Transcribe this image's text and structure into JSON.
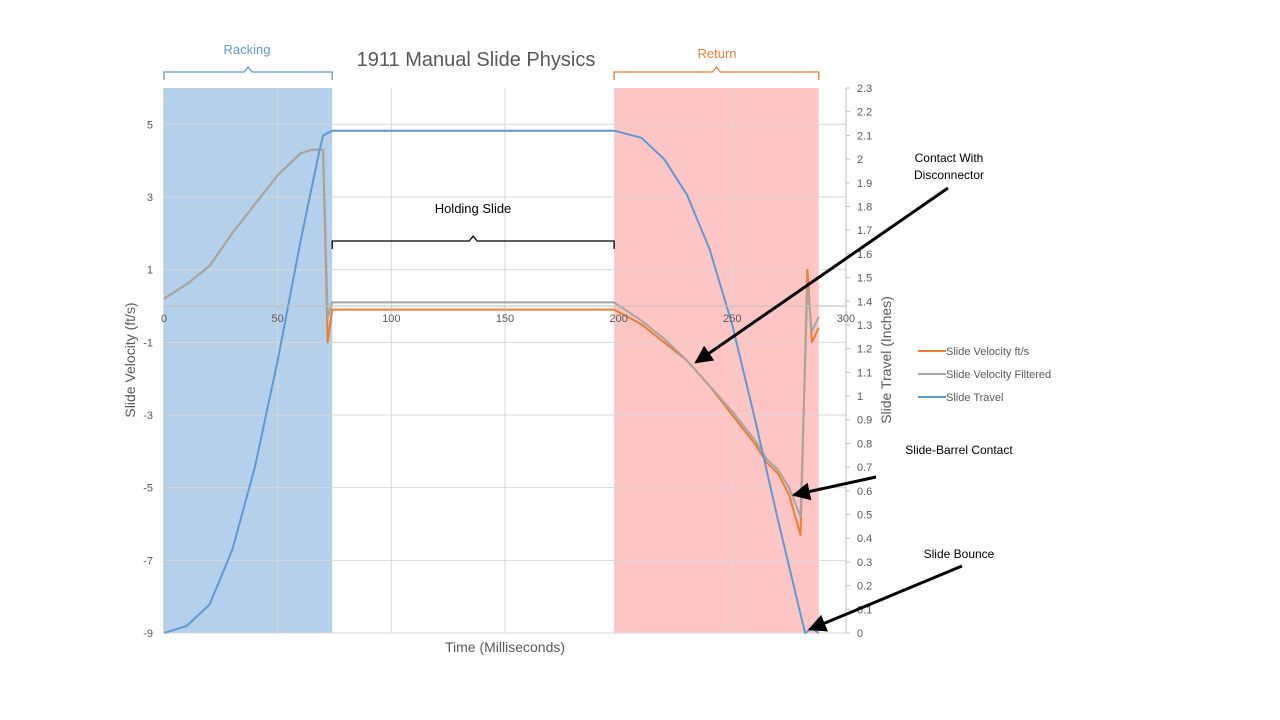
{
  "chart_data": {
    "type": "line",
    "title": "1911 Manual Slide Physics",
    "xlabel": "Time (Milliseconds)",
    "ylabel": "Slide Velocity (ft/s)",
    "y2label": "Slide Travel (Inches)",
    "xlim": [
      0,
      300
    ],
    "ylim": [
      -9,
      6
    ],
    "y2lim": [
      0,
      2.3
    ],
    "x_ticks": [
      0,
      50,
      100,
      150,
      200,
      250,
      300
    ],
    "y_ticks": [
      -9,
      -7,
      -5,
      -3,
      -1,
      1,
      3,
      5
    ],
    "y2_ticks": [
      0,
      0.1,
      0.2,
      0.3,
      0.4,
      0.5,
      0.6,
      0.7,
      0.8,
      0.9,
      1,
      1.1,
      1.2,
      1.3,
      1.4,
      1.5,
      1.6,
      1.7,
      1.8,
      1.9,
      2,
      2.1,
      2.2,
      2.3
    ],
    "grid": true,
    "legend_position": "right",
    "regions": [
      {
        "label": "Racking",
        "x_start": 0,
        "x_end": 74,
        "color": "#b4d0ea"
      },
      {
        "label": "Return",
        "x_start": 198,
        "x_end": 288,
        "color": "#ffc4c4"
      }
    ],
    "brace_label": "Holding Slide",
    "series": [
      {
        "name": "Slide Velocity ft/s",
        "axis": "left",
        "color": "#ed7d31",
        "x": [
          0,
          10,
          20,
          30,
          40,
          50,
          60,
          65,
          70,
          72,
          74,
          100,
          150,
          198,
          210,
          220,
          230,
          240,
          250,
          260,
          265,
          270,
          275,
          280,
          283,
          285,
          288
        ],
        "y": [
          0.2,
          0.6,
          1.1,
          2.0,
          2.8,
          3.6,
          4.2,
          4.3,
          4.3,
          -1.0,
          -0.1,
          -0.1,
          -0.1,
          -0.1,
          -0.5,
          -1.0,
          -1.5,
          -2.2,
          -3.0,
          -3.8,
          -4.3,
          -4.6,
          -5.2,
          -6.3,
          1.0,
          -1.0,
          -0.6
        ]
      },
      {
        "name": "Slide Velocity Filtered",
        "axis": "left",
        "color": "#a5a5a5",
        "x": [
          0,
          10,
          20,
          30,
          40,
          50,
          60,
          65,
          70,
          72,
          74,
          100,
          150,
          198,
          210,
          220,
          230,
          240,
          250,
          260,
          265,
          270,
          275,
          280,
          283,
          285,
          288
        ],
        "y": [
          0.2,
          0.6,
          1.1,
          2.0,
          2.8,
          3.6,
          4.2,
          4.3,
          4.3,
          -0.3,
          0.1,
          0.1,
          0.1,
          0.1,
          -0.4,
          -0.9,
          -1.5,
          -2.2,
          -2.9,
          -3.7,
          -4.2,
          -4.5,
          -5.0,
          -5.8,
          0.5,
          -0.7,
          -0.3
        ]
      },
      {
        "name": "Slide Travel",
        "axis": "right",
        "color": "#5b9bd5",
        "x": [
          0,
          10,
          20,
          30,
          40,
          50,
          60,
          68,
          70,
          74,
          150,
          198,
          210,
          220,
          230,
          240,
          250,
          260,
          270,
          280,
          282,
          285,
          288
        ],
        "y": [
          0.0,
          0.03,
          0.12,
          0.35,
          0.7,
          1.15,
          1.65,
          2.02,
          2.1,
          2.12,
          2.12,
          2.12,
          2.09,
          2.0,
          1.85,
          1.62,
          1.3,
          0.9,
          0.48,
          0.08,
          0.0,
          0.02,
          0.0
        ]
      }
    ],
    "annotations": [
      {
        "text_lines": [
          "Contact With",
          "Disconnector"
        ],
        "target_x": 234,
        "target_y": -1.55
      },
      {
        "text_lines": [
          "Slide-Barrel Contact"
        ],
        "target_x": 277,
        "target_y": -5.2
      },
      {
        "text_lines": [
          "Slide Bounce"
        ],
        "target_x": 284,
        "target_y": -8.9
      }
    ]
  }
}
